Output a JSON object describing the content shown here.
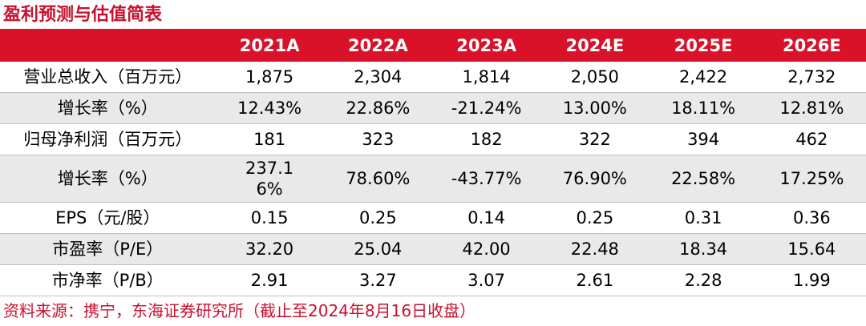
{
  "title": "盈利预测与估值简表",
  "table": {
    "columns": [
      "",
      "2021A",
      "2022A",
      "2023A",
      "2024E",
      "2025E",
      "2026E"
    ],
    "rows": [
      {
        "label": "营业总收入（百万元）",
        "values": [
          "1,875",
          "2,304",
          "1,814",
          "2,050",
          "2,422",
          "2,732"
        ]
      },
      {
        "label": "增长率（%）",
        "values": [
          "12.43%",
          "22.86%",
          "-21.24%",
          "13.00%",
          "18.11%",
          "12.81%"
        ]
      },
      {
        "label": "归母净利润（百万元）",
        "values": [
          "181",
          "323",
          "182",
          "322",
          "394",
          "462"
        ]
      },
      {
        "label": "增长率（%）",
        "values": [
          "237.16%",
          "78.60%",
          "-43.77%",
          "76.90%",
          "22.58%",
          "17.25%"
        ]
      },
      {
        "label": "EPS（元/股）",
        "values": [
          "0.15",
          "0.25",
          "0.14",
          "0.25",
          "0.31",
          "0.36"
        ]
      },
      {
        "label": "市盈率（P/E）",
        "values": [
          "32.20",
          "25.04",
          "42.00",
          "22.48",
          "18.34",
          "15.64"
        ]
      },
      {
        "label": "市净率（P/B）",
        "values": [
          "2.91",
          "3.27",
          "3.07",
          "2.61",
          "2.28",
          "1.99"
        ]
      }
    ]
  },
  "source": "资料来源：携宁，东海证券研究所（截止至2024年8月16日收盘）",
  "colors": {
    "accent": "#c8102e",
    "header_bg": "#d9122a",
    "alt_row_bg": "#e9e9e9"
  }
}
